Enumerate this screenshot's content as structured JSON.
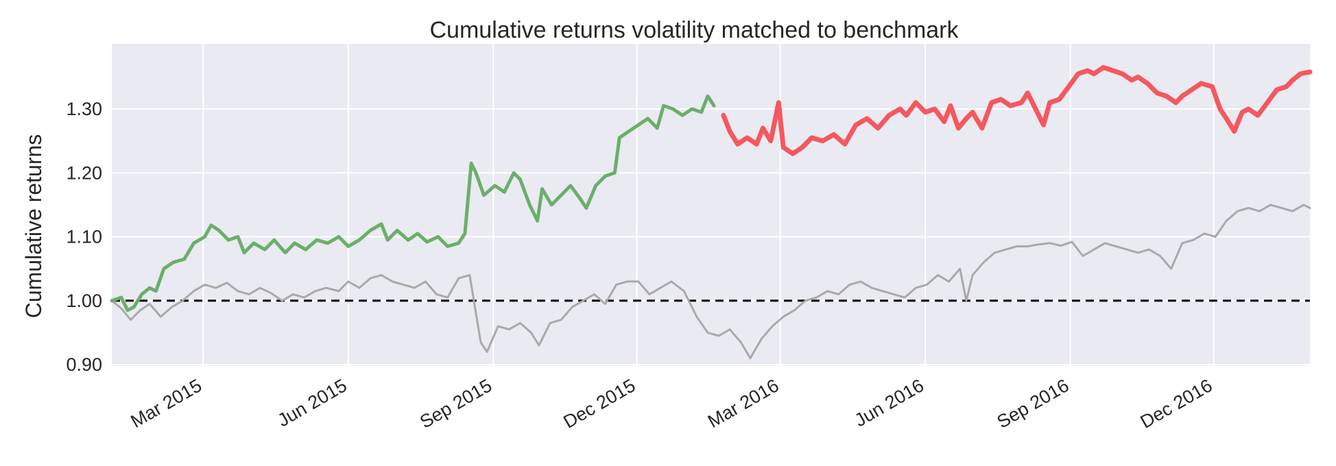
{
  "chart_data": {
    "type": "line",
    "title": "Cumulative returns volatility matched to benchmark",
    "xlabel": "",
    "ylabel": "Cumulative returns",
    "x_range": [
      "2015-01-02",
      "2017-01-31"
    ],
    "ylim": [
      0.9,
      1.4
    ],
    "grid": true,
    "legend": "none",
    "x_ticks": [
      {
        "date": "2015-03-01",
        "label": "Mar 2015"
      },
      {
        "date": "2015-06-01",
        "label": "Jun 2015"
      },
      {
        "date": "2015-09-01",
        "label": "Sep 2015"
      },
      {
        "date": "2015-12-01",
        "label": "Dec 2015"
      },
      {
        "date": "2016-03-01",
        "label": "Mar 2016"
      },
      {
        "date": "2016-06-01",
        "label": "Jun 2016"
      },
      {
        "date": "2016-09-01",
        "label": "Sep 2016"
      },
      {
        "date": "2016-12-01",
        "label": "Dec 2016"
      }
    ],
    "y_ticks": [
      {
        "value": 0.9,
        "label": "0.90"
      },
      {
        "value": 1.0,
        "label": "1.00"
      },
      {
        "value": 1.1,
        "label": "1.10"
      },
      {
        "value": 1.2,
        "label": "1.20"
      },
      {
        "value": 1.3,
        "label": "1.30"
      }
    ],
    "reference_line": {
      "y": 1.0,
      "style": "dashed",
      "color": "#000000"
    },
    "colors": {
      "in_sample": "#6aaf6a",
      "out_of_sample": "#f4585e",
      "benchmark": "#a9a9a9",
      "background": "#eaeaf2"
    },
    "series": [
      {
        "key": "benchmark",
        "points": [
          [
            "2015-01-02",
            1.0
          ],
          [
            "2015-01-08",
            0.988
          ],
          [
            "2015-01-14",
            0.97
          ],
          [
            "2015-01-20",
            0.985
          ],
          [
            "2015-01-26",
            0.995
          ],
          [
            "2015-02-02",
            0.975
          ],
          [
            "2015-02-09",
            0.99
          ],
          [
            "2015-02-16",
            1.0
          ],
          [
            "2015-02-23",
            1.015
          ],
          [
            "2015-03-02",
            1.025
          ],
          [
            "2015-03-09",
            1.02
          ],
          [
            "2015-03-16",
            1.028
          ],
          [
            "2015-03-23",
            1.015
          ],
          [
            "2015-03-30",
            1.01
          ],
          [
            "2015-04-06",
            1.02
          ],
          [
            "2015-04-13",
            1.012
          ],
          [
            "2015-04-20",
            1.0
          ],
          [
            "2015-04-27",
            1.01
          ],
          [
            "2015-05-04",
            1.005
          ],
          [
            "2015-05-11",
            1.015
          ],
          [
            "2015-05-18",
            1.02
          ],
          [
            "2015-05-26",
            1.015
          ],
          [
            "2015-06-01",
            1.03
          ],
          [
            "2015-06-08",
            1.02
          ],
          [
            "2015-06-15",
            1.035
          ],
          [
            "2015-06-22",
            1.04
          ],
          [
            "2015-06-29",
            1.03
          ],
          [
            "2015-07-06",
            1.025
          ],
          [
            "2015-07-13",
            1.02
          ],
          [
            "2015-07-20",
            1.03
          ],
          [
            "2015-07-27",
            1.01
          ],
          [
            "2015-08-03",
            1.005
          ],
          [
            "2015-08-10",
            1.035
          ],
          [
            "2015-08-17",
            1.04
          ],
          [
            "2015-08-24",
            0.935
          ],
          [
            "2015-08-28",
            0.92
          ],
          [
            "2015-09-04",
            0.96
          ],
          [
            "2015-09-11",
            0.955
          ],
          [
            "2015-09-18",
            0.965
          ],
          [
            "2015-09-25",
            0.95
          ],
          [
            "2015-09-30",
            0.93
          ],
          [
            "2015-10-07",
            0.965
          ],
          [
            "2015-10-14",
            0.97
          ],
          [
            "2015-10-21",
            0.99
          ],
          [
            "2015-10-28",
            1.0
          ],
          [
            "2015-11-04",
            1.01
          ],
          [
            "2015-11-11",
            0.995
          ],
          [
            "2015-11-18",
            1.025
          ],
          [
            "2015-11-25",
            1.03
          ],
          [
            "2015-12-02",
            1.03
          ],
          [
            "2015-12-09",
            1.01
          ],
          [
            "2015-12-16",
            1.02
          ],
          [
            "2015-12-23",
            1.03
          ],
          [
            "2015-12-31",
            1.015
          ],
          [
            "2016-01-08",
            0.975
          ],
          [
            "2016-01-15",
            0.95
          ],
          [
            "2016-01-22",
            0.945
          ],
          [
            "2016-01-29",
            0.955
          ],
          [
            "2016-02-05",
            0.935
          ],
          [
            "2016-02-11",
            0.91
          ],
          [
            "2016-02-18",
            0.94
          ],
          [
            "2016-02-25",
            0.96
          ],
          [
            "2016-03-03",
            0.975
          ],
          [
            "2016-03-10",
            0.985
          ],
          [
            "2016-03-17",
            1.0
          ],
          [
            "2016-03-24",
            1.005
          ],
          [
            "2016-03-31",
            1.015
          ],
          [
            "2016-04-07",
            1.01
          ],
          [
            "2016-04-14",
            1.025
          ],
          [
            "2016-04-21",
            1.03
          ],
          [
            "2016-04-28",
            1.02
          ],
          [
            "2016-05-05",
            1.015
          ],
          [
            "2016-05-12",
            1.01
          ],
          [
            "2016-05-19",
            1.005
          ],
          [
            "2016-05-26",
            1.02
          ],
          [
            "2016-06-02",
            1.025
          ],
          [
            "2016-06-09",
            1.04
          ],
          [
            "2016-06-16",
            1.03
          ],
          [
            "2016-06-23",
            1.05
          ],
          [
            "2016-06-27",
            1.0
          ],
          [
            "2016-07-01",
            1.04
          ],
          [
            "2016-07-08",
            1.06
          ],
          [
            "2016-07-15",
            1.075
          ],
          [
            "2016-07-22",
            1.08
          ],
          [
            "2016-07-29",
            1.085
          ],
          [
            "2016-08-05",
            1.085
          ],
          [
            "2016-08-12",
            1.088
          ],
          [
            "2016-08-19",
            1.09
          ],
          [
            "2016-08-26",
            1.086
          ],
          [
            "2016-09-02",
            1.092
          ],
          [
            "2016-09-09",
            1.07
          ],
          [
            "2016-09-16",
            1.08
          ],
          [
            "2016-09-23",
            1.09
          ],
          [
            "2016-09-30",
            1.085
          ],
          [
            "2016-10-07",
            1.08
          ],
          [
            "2016-10-14",
            1.075
          ],
          [
            "2016-10-21",
            1.08
          ],
          [
            "2016-10-28",
            1.07
          ],
          [
            "2016-11-04",
            1.05
          ],
          [
            "2016-11-11",
            1.09
          ],
          [
            "2016-11-18",
            1.095
          ],
          [
            "2016-11-25",
            1.105
          ],
          [
            "2016-12-02",
            1.1
          ],
          [
            "2016-12-09",
            1.125
          ],
          [
            "2016-12-16",
            1.14
          ],
          [
            "2016-12-23",
            1.145
          ],
          [
            "2016-12-30",
            1.14
          ],
          [
            "2017-01-06",
            1.15
          ],
          [
            "2017-01-13",
            1.145
          ],
          [
            "2017-01-20",
            1.14
          ],
          [
            "2017-01-27",
            1.15
          ],
          [
            "2017-01-31",
            1.145
          ]
        ]
      },
      {
        "key": "in_sample",
        "points": [
          [
            "2015-01-02",
            1.0
          ],
          [
            "2015-01-08",
            1.005
          ],
          [
            "2015-01-12",
            0.985
          ],
          [
            "2015-01-16",
            0.99
          ],
          [
            "2015-01-21",
            1.01
          ],
          [
            "2015-01-26",
            1.02
          ],
          [
            "2015-01-30",
            1.015
          ],
          [
            "2015-02-04",
            1.05
          ],
          [
            "2015-02-10",
            1.06
          ],
          [
            "2015-02-17",
            1.065
          ],
          [
            "2015-02-23",
            1.09
          ],
          [
            "2015-03-02",
            1.1
          ],
          [
            "2015-03-06",
            1.118
          ],
          [
            "2015-03-11",
            1.11
          ],
          [
            "2015-03-17",
            1.095
          ],
          [
            "2015-03-23",
            1.1
          ],
          [
            "2015-03-27",
            1.075
          ],
          [
            "2015-04-02",
            1.09
          ],
          [
            "2015-04-09",
            1.08
          ],
          [
            "2015-04-15",
            1.095
          ],
          [
            "2015-04-22",
            1.075
          ],
          [
            "2015-04-28",
            1.09
          ],
          [
            "2015-05-05",
            1.08
          ],
          [
            "2015-05-12",
            1.095
          ],
          [
            "2015-05-19",
            1.09
          ],
          [
            "2015-05-26",
            1.1
          ],
          [
            "2015-06-01",
            1.085
          ],
          [
            "2015-06-08",
            1.095
          ],
          [
            "2015-06-15",
            1.11
          ],
          [
            "2015-06-22",
            1.12
          ],
          [
            "2015-06-26",
            1.095
          ],
          [
            "2015-07-02",
            1.11
          ],
          [
            "2015-07-09",
            1.095
          ],
          [
            "2015-07-15",
            1.105
          ],
          [
            "2015-07-21",
            1.092
          ],
          [
            "2015-07-28",
            1.1
          ],
          [
            "2015-08-03",
            1.085
          ],
          [
            "2015-08-10",
            1.09
          ],
          [
            "2015-08-14",
            1.105
          ],
          [
            "2015-08-18",
            1.215
          ],
          [
            "2015-08-21",
            1.2
          ],
          [
            "2015-08-26",
            1.165
          ],
          [
            "2015-09-02",
            1.18
          ],
          [
            "2015-09-08",
            1.17
          ],
          [
            "2015-09-14",
            1.2
          ],
          [
            "2015-09-18",
            1.19
          ],
          [
            "2015-09-24",
            1.15
          ],
          [
            "2015-09-29",
            1.125
          ],
          [
            "2015-10-02",
            1.175
          ],
          [
            "2015-10-08",
            1.15
          ],
          [
            "2015-10-14",
            1.165
          ],
          [
            "2015-10-20",
            1.18
          ],
          [
            "2015-10-26",
            1.16
          ],
          [
            "2015-10-30",
            1.145
          ],
          [
            "2015-11-05",
            1.18
          ],
          [
            "2015-11-11",
            1.195
          ],
          [
            "2015-11-17",
            1.2
          ],
          [
            "2015-11-20",
            1.255
          ],
          [
            "2015-11-26",
            1.265
          ],
          [
            "2015-12-02",
            1.275
          ],
          [
            "2015-12-08",
            1.285
          ],
          [
            "2015-12-14",
            1.27
          ],
          [
            "2015-12-18",
            1.305
          ],
          [
            "2015-12-24",
            1.3
          ],
          [
            "2015-12-30",
            1.29
          ],
          [
            "2016-01-05",
            1.3
          ],
          [
            "2016-01-11",
            1.295
          ],
          [
            "2016-01-15",
            1.32
          ],
          [
            "2016-01-19",
            1.305
          ]
        ]
      },
      {
        "key": "out_of_sample",
        "points": [
          [
            "2016-01-25",
            1.29
          ],
          [
            "2016-01-29",
            1.265
          ],
          [
            "2016-02-03",
            1.245
          ],
          [
            "2016-02-09",
            1.255
          ],
          [
            "2016-02-15",
            1.245
          ],
          [
            "2016-02-19",
            1.27
          ],
          [
            "2016-02-24",
            1.25
          ],
          [
            "2016-02-29",
            1.31
          ],
          [
            "2016-03-03",
            1.24
          ],
          [
            "2016-03-09",
            1.23
          ],
          [
            "2016-03-15",
            1.24
          ],
          [
            "2016-03-21",
            1.255
          ],
          [
            "2016-03-28",
            1.25
          ],
          [
            "2016-04-04",
            1.26
          ],
          [
            "2016-04-11",
            1.245
          ],
          [
            "2016-04-18",
            1.275
          ],
          [
            "2016-04-25",
            1.285
          ],
          [
            "2016-05-02",
            1.27
          ],
          [
            "2016-05-09",
            1.29
          ],
          [
            "2016-05-16",
            1.3
          ],
          [
            "2016-05-20",
            1.29
          ],
          [
            "2016-05-26",
            1.31
          ],
          [
            "2016-06-01",
            1.295
          ],
          [
            "2016-06-07",
            1.3
          ],
          [
            "2016-06-13",
            1.28
          ],
          [
            "2016-06-17",
            1.305
          ],
          [
            "2016-06-22",
            1.27
          ],
          [
            "2016-06-27",
            1.285
          ],
          [
            "2016-07-01",
            1.295
          ],
          [
            "2016-07-07",
            1.27
          ],
          [
            "2016-07-13",
            1.31
          ],
          [
            "2016-07-19",
            1.315
          ],
          [
            "2016-07-25",
            1.305
          ],
          [
            "2016-08-01",
            1.31
          ],
          [
            "2016-08-05",
            1.325
          ],
          [
            "2016-08-10",
            1.3
          ],
          [
            "2016-08-15",
            1.275
          ],
          [
            "2016-08-19",
            1.31
          ],
          [
            "2016-08-25",
            1.315
          ],
          [
            "2016-08-31",
            1.335
          ],
          [
            "2016-09-06",
            1.355
          ],
          [
            "2016-09-12",
            1.36
          ],
          [
            "2016-09-16",
            1.355
          ],
          [
            "2016-09-22",
            1.365
          ],
          [
            "2016-09-28",
            1.36
          ],
          [
            "2016-10-04",
            1.355
          ],
          [
            "2016-10-10",
            1.345
          ],
          [
            "2016-10-14",
            1.35
          ],
          [
            "2016-10-20",
            1.34
          ],
          [
            "2016-10-26",
            1.325
          ],
          [
            "2016-11-01",
            1.32
          ],
          [
            "2016-11-07",
            1.31
          ],
          [
            "2016-11-11",
            1.32
          ],
          [
            "2016-11-17",
            1.33
          ],
          [
            "2016-11-23",
            1.34
          ],
          [
            "2016-11-30",
            1.335
          ],
          [
            "2016-12-05",
            1.3
          ],
          [
            "2016-12-09",
            1.285
          ],
          [
            "2016-12-14",
            1.265
          ],
          [
            "2016-12-19",
            1.295
          ],
          [
            "2016-12-23",
            1.3
          ],
          [
            "2016-12-29",
            1.29
          ],
          [
            "2017-01-04",
            1.31
          ],
          [
            "2017-01-10",
            1.33
          ],
          [
            "2017-01-16",
            1.335
          ],
          [
            "2017-01-20",
            1.345
          ],
          [
            "2017-01-25",
            1.355
          ],
          [
            "2017-01-31",
            1.358
          ]
        ]
      }
    ]
  }
}
